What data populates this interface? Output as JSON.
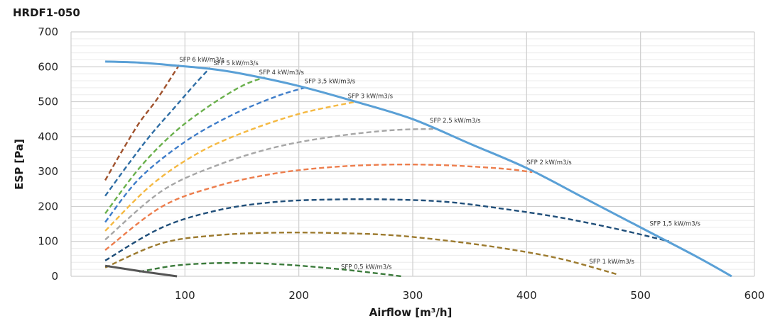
{
  "chart_data": {
    "type": "line",
    "title": "HRDF1-050",
    "xlabel": "Airflow [m³/h]",
    "ylabel": "ESP  [Pa]",
    "xlim": [
      0,
      600
    ],
    "ylim": [
      0,
      700
    ],
    "x_ticks": [
      "100",
      "200",
      "300",
      "400",
      "500",
      "600"
    ],
    "y_ticks": [
      "0",
      "100",
      "200",
      "300",
      "400",
      "500",
      "600",
      "700"
    ],
    "grid": "horizontal minor and major, vertical major",
    "legend": "none",
    "fan_curve": {
      "color": "#5aa0d6",
      "x": [
        30,
        60,
        90,
        120,
        150,
        200,
        250,
        300,
        350,
        400,
        450,
        500,
        550,
        580
      ],
      "y": [
        615,
        612,
        604,
        595,
        580,
        545,
        500,
        450,
        380,
        310,
        225,
        140,
        55,
        0
      ]
    },
    "min_curve": {
      "color": "#555555",
      "x": [
        30,
        60,
        93
      ],
      "y": [
        30,
        15,
        0
      ]
    },
    "series": [
      {
        "label": "SFP 6 kW/m3/s",
        "color": "#a0522d",
        "x": [
          30,
          45,
          60,
          75,
          90,
          95
        ],
        "y": [
          275,
          360,
          440,
          505,
          580,
          605
        ],
        "label_at": [
          95,
          607
        ]
      },
      {
        "label": "SFP 5 kW/m3/s",
        "color": "#2e6da4",
        "x": [
          30,
          50,
          70,
          90,
          110,
          122
        ],
        "y": [
          230,
          320,
          405,
          480,
          555,
          597
        ],
        "label_at": [
          125,
          597
        ]
      },
      {
        "label": "SFP 4 kW/m3/s",
        "color": "#6ab04c",
        "x": [
          30,
          60,
          90,
          120,
          150,
          170
        ],
        "y": [
          180,
          310,
          410,
          485,
          545,
          570
        ],
        "label_at": [
          165,
          570
        ]
      },
      {
        "label": "SFP 3,5 kW/m3/s",
        "color": "#3d7cc9",
        "x": [
          30,
          60,
          100,
          140,
          180,
          205
        ],
        "y": [
          155,
          280,
          385,
          460,
          515,
          540
        ],
        "label_at": [
          205,
          545
        ]
      },
      {
        "label": "SFP 3 kW/m3/s",
        "color": "#f5b942",
        "x": [
          30,
          70,
          110,
          150,
          200,
          250
        ],
        "y": [
          130,
          260,
          350,
          410,
          465,
          500
        ],
        "label_at": [
          243,
          502
        ]
      },
      {
        "label": "SFP 2,5 kW/m3/s",
        "color": "#a6a6a6",
        "x": [
          30,
          80,
          130,
          180,
          230,
          280,
          318
        ],
        "y": [
          105,
          245,
          320,
          370,
          400,
          418,
          422
        ],
        "label_at": [
          315,
          432
        ]
      },
      {
        "label": "SFP 2 kW/m3/s",
        "color": "#ed7d4c",
        "x": [
          30,
          80,
          130,
          180,
          230,
          280,
          330,
          380,
          405
        ],
        "y": [
          75,
          200,
          260,
          295,
          313,
          320,
          318,
          308,
          298
        ],
        "label_at": [
          400,
          312
        ]
      },
      {
        "label": "SFP 1,5 kW/m3/s",
        "color": "#1f4e79",
        "x": [
          30,
          80,
          130,
          180,
          230,
          280,
          330,
          380,
          430,
          480,
          525
        ],
        "y": [
          45,
          140,
          190,
          213,
          220,
          220,
          213,
          193,
          168,
          135,
          100
        ],
        "label_at": [
          508,
          137
        ]
      },
      {
        "label": "SFP 1 kW/m3/s",
        "color": "#9c7a2e",
        "x": [
          30,
          80,
          130,
          180,
          230,
          280,
          330,
          380,
          430,
          480
        ],
        "y": [
          25,
          95,
          118,
          125,
          124,
          118,
          102,
          80,
          50,
          5
        ],
        "label_at": [
          455,
          28
        ]
      },
      {
        "label": "SFP 0,5 kW/m3/s",
        "color": "#3a7a3a",
        "x": [
          60,
          90,
          120,
          150,
          180,
          210,
          240,
          270,
          290
        ],
        "y": [
          13,
          30,
          37,
          38,
          35,
          28,
          19,
          8,
          0
        ],
        "label_at": [
          237,
          13
        ]
      }
    ]
  }
}
